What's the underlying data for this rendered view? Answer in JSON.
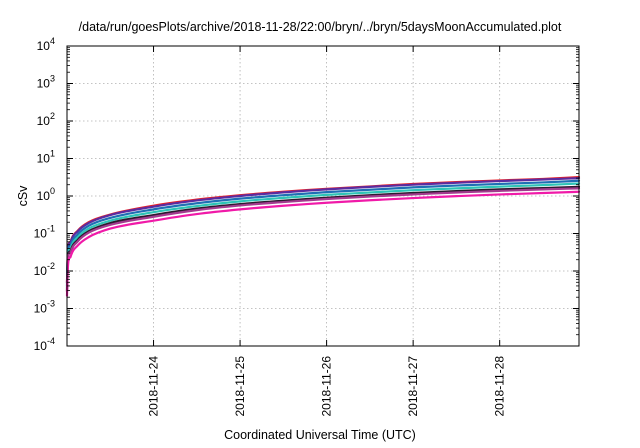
{
  "chart_data": {
    "type": "line",
    "title": "/data/run/goesPlots/archive/2018-11-28/22:00/bryn/../bryn/5daysMoonAccumulated.plot",
    "xlabel": "Coordinated Universal Time (UTC)",
    "ylabel": "cSv",
    "yscale": "log",
    "ylim": [
      0.0001,
      10000
    ],
    "xlim": [
      "2018-11-23T00:00",
      "2018-11-28T22:00"
    ],
    "grid": true,
    "x_ticks": [
      "2018-11-24",
      "2018-11-25",
      "2018-11-26",
      "2018-11-27",
      "2018-11-28"
    ],
    "y_ticks": [
      {
        "base": "10",
        "exp": "-4",
        "value": 0.0001
      },
      {
        "base": "10",
        "exp": "-3",
        "value": 0.001
      },
      {
        "base": "10",
        "exp": "-2",
        "value": 0.01
      },
      {
        "base": "10",
        "exp": "-1",
        "value": 0.1
      },
      {
        "base": "10",
        "exp": "0",
        "value": 1
      },
      {
        "base": "10",
        "exp": "1",
        "value": 10
      },
      {
        "base": "10",
        "exp": "2",
        "value": 100
      },
      {
        "base": "10",
        "exp": "3",
        "value": 1000
      },
      {
        "base": "10",
        "exp": "4",
        "value": 10000
      }
    ],
    "x": [
      "2018-11-23T00:00",
      "2018-11-23T00:10",
      "2018-11-23T01:00",
      "2018-11-23T03:00",
      "2018-11-23T06:00",
      "2018-11-23T12:00",
      "2018-11-24T00:00",
      "2018-11-24T12:00",
      "2018-11-25T00:00",
      "2018-11-25T12:00",
      "2018-11-26T00:00",
      "2018-11-26T12:00",
      "2018-11-27T00:00",
      "2018-11-27T12:00",
      "2018-11-28T00:00",
      "2018-11-28T12:00",
      "2018-11-28T22:00"
    ],
    "series": [
      {
        "color": "#e8202a",
        "values": [
          0.005,
          0.022,
          0.06,
          0.12,
          0.2,
          0.32,
          0.55,
          0.8,
          1.05,
          1.3,
          1.55,
          1.8,
          2.1,
          2.35,
          2.6,
          2.85,
          3.2
        ]
      },
      {
        "color": "#5a2ca0",
        "values": [
          0.0048,
          0.021,
          0.058,
          0.115,
          0.19,
          0.31,
          0.52,
          0.76,
          1.0,
          1.25,
          1.5,
          1.75,
          2.0,
          2.25,
          2.5,
          2.75,
          3.0
        ]
      },
      {
        "color": "#1f6fb4",
        "values": [
          0.004,
          0.018,
          0.048,
          0.095,
          0.16,
          0.26,
          0.44,
          0.64,
          0.85,
          1.05,
          1.27,
          1.47,
          1.7,
          1.9,
          2.1,
          2.3,
          2.55
        ]
      },
      {
        "color": "#2ec4b6",
        "values": [
          0.0035,
          0.015,
          0.04,
          0.08,
          0.135,
          0.22,
          0.37,
          0.54,
          0.72,
          0.89,
          1.07,
          1.24,
          1.43,
          1.6,
          1.78,
          1.95,
          2.15
        ]
      },
      {
        "color": "#2b1a2e",
        "values": [
          0.003,
          0.013,
          0.034,
          0.068,
          0.115,
          0.19,
          0.31,
          0.46,
          0.61,
          0.75,
          0.9,
          1.05,
          1.2,
          1.35,
          1.5,
          1.63,
          1.75
        ]
      },
      {
        "color": "#a33a8e",
        "values": [
          0.0028,
          0.012,
          0.031,
          0.062,
          0.105,
          0.17,
          0.28,
          0.42,
          0.56,
          0.69,
          0.83,
          0.97,
          1.1,
          1.24,
          1.37,
          1.5,
          1.6
        ]
      },
      {
        "color": "#f01aa8",
        "values": [
          0.0022,
          0.009,
          0.024,
          0.048,
          0.08,
          0.135,
          0.22,
          0.33,
          0.44,
          0.55,
          0.66,
          0.77,
          0.88,
          0.99,
          1.1,
          1.2,
          1.3
        ]
      }
    ]
  }
}
